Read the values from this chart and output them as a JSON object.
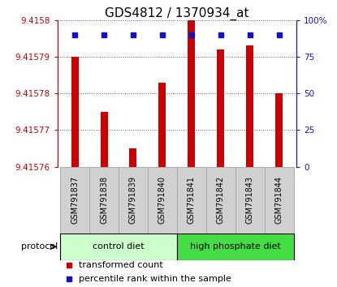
{
  "title": "GDS4812 / 1370934_at",
  "samples": [
    "GSM791837",
    "GSM791838",
    "GSM791839",
    "GSM791840",
    "GSM791841",
    "GSM791842",
    "GSM791843",
    "GSM791844"
  ],
  "transformed_count": [
    9.41579,
    9.415775,
    9.415765,
    9.415783,
    9.4158,
    9.415792,
    9.415793,
    9.41578
  ],
  "percentile_rank": [
    90,
    90,
    90,
    90,
    90,
    90,
    90,
    90
  ],
  "ylim_left": [
    9.41576,
    9.4158
  ],
  "yticks_left": [
    9.41576,
    9.41577,
    9.41578,
    9.41579,
    9.4158
  ],
  "yticks_right": [
    0,
    25,
    50,
    75,
    100
  ],
  "ylim_right": [
    0,
    100
  ],
  "bar_color": "#cc0000",
  "dot_color": "#1111cc",
  "bar_width": 0.25,
  "groups": [
    {
      "label": "control diet",
      "indices": [
        0,
        1,
        2,
        3
      ],
      "color": "#ccffcc"
    },
    {
      "label": "high phosphate diet",
      "indices": [
        4,
        5,
        6,
        7
      ],
      "color": "#44dd44"
    }
  ],
  "protocol_label": "protocol",
  "legend_bar": "transformed count",
  "legend_dot": "percentile rank within the sample",
  "title_fontsize": 11,
  "tick_fontsize": 7.5,
  "sample_fontsize": 7,
  "legend_fontsize": 8,
  "axis_left_color": "#cc0000",
  "axis_right_color": "#1111cc",
  "gray_box_color": "#d0d0d0",
  "ctrl_color": "#ccffcc",
  "hp_color": "#44dd44"
}
